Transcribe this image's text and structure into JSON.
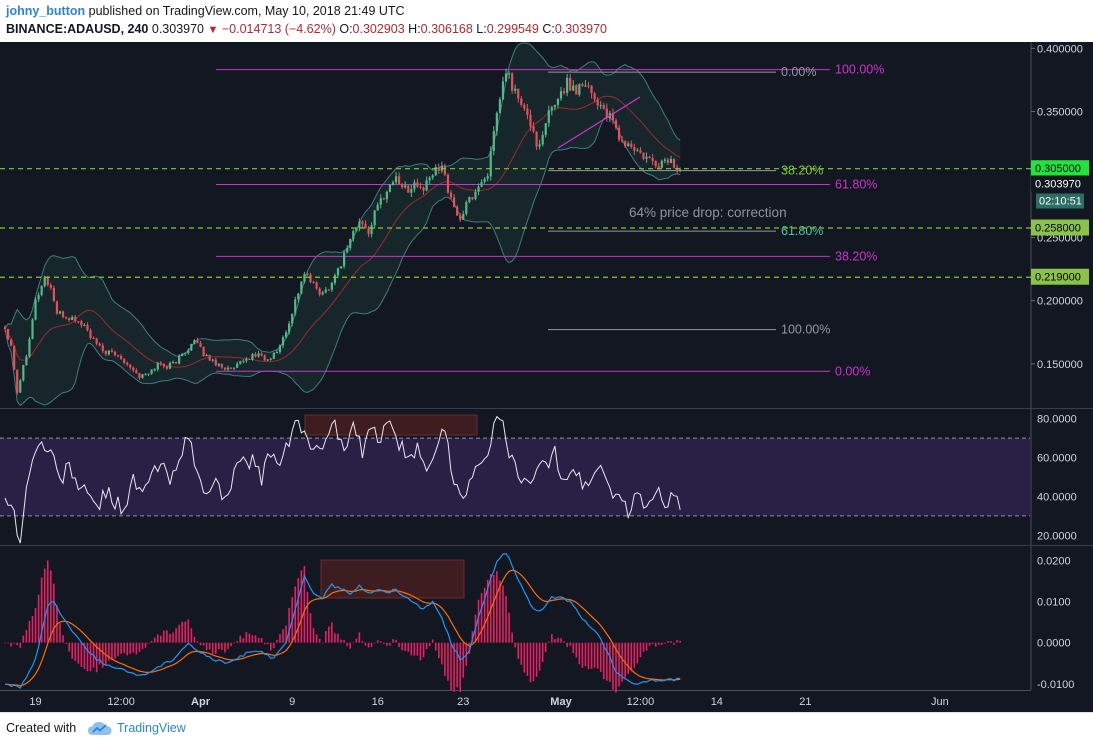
{
  "header": {
    "author": "johny_button",
    "published_text": "published on TradingView.com, May 10, 2018 21:49 UTC",
    "symbol": "BINANCE:ADAUSD, 240",
    "last": "0.303970",
    "change": "−0.014713 (−4.62%)",
    "ohlc": {
      "o_label": "O:",
      "o": "0.302903",
      "h_label": "H:",
      "h": "0.306168",
      "l_label": "L:",
      "l": "0.299549",
      "c_label": "C:",
      "c": "0.303970"
    }
  },
  "footer": {
    "created_with": "Created with",
    "brand": "TradingView",
    "logo_icon": "tradingview-cloud-icon"
  },
  "colors": {
    "background": "#131722",
    "up": "#53b987",
    "down": "#eb4d5c",
    "fib_gray": "#9598a1",
    "fib_magenta": "#cc33cc",
    "level_green": "#7fcc2e",
    "rsi_band": "#2a1f45",
    "macd_line": "#2196f3",
    "signal_line": "#ff6d00",
    "histogram": "#e91e63"
  },
  "chart_data": [
    {
      "type": "candlestick",
      "panel": "price",
      "ylim": [
        0.115,
        0.405
      ],
      "y_ticks": [
        "0.400000",
        "0.350000",
        "0.300000",
        "0.250000",
        "0.200000",
        "0.150000"
      ],
      "x_ticks": [
        "19",
        "12:00",
        "Apr",
        "9",
        "16",
        "23",
        "May",
        "12:00",
        "14",
        "21",
        "Jun"
      ],
      "close_anchors": [
        [
          0,
          0.178
        ],
        [
          2,
          0.165
        ],
        [
          4,
          0.128
        ],
        [
          7,
          0.158
        ],
        [
          10,
          0.2
        ],
        [
          13,
          0.218
        ],
        [
          15,
          0.21
        ],
        [
          17,
          0.19
        ],
        [
          20,
          0.187
        ],
        [
          23,
          0.185
        ],
        [
          26,
          0.18
        ],
        [
          29,
          0.168
        ],
        [
          32,
          0.16
        ],
        [
          35,
          0.158
        ],
        [
          38,
          0.155
        ],
        [
          41,
          0.148
        ],
        [
          44,
          0.14
        ],
        [
          47,
          0.142
        ],
        [
          50,
          0.15
        ],
        [
          53,
          0.148
        ],
        [
          56,
          0.152
        ],
        [
          59,
          0.16
        ],
        [
          62,
          0.168
        ],
        [
          65,
          0.158
        ],
        [
          68,
          0.152
        ],
        [
          71,
          0.148
        ],
        [
          74,
          0.145
        ],
        [
          77,
          0.15
        ],
        [
          80,
          0.155
        ],
        [
          83,
          0.158
        ],
        [
          86,
          0.152
        ],
        [
          89,
          0.16
        ],
        [
          92,
          0.175
        ],
        [
          95,
          0.2
        ],
        [
          98,
          0.222
        ],
        [
          101,
          0.212
        ],
        [
          104,
          0.205
        ],
        [
          107,
          0.215
        ],
        [
          110,
          0.23
        ],
        [
          113,
          0.25
        ],
        [
          116,
          0.262
        ],
        [
          119,
          0.255
        ],
        [
          122,
          0.275
        ],
        [
          125,
          0.288
        ],
        [
          128,
          0.298
        ],
        [
          131,
          0.288
        ],
        [
          134,
          0.292
        ],
        [
          137,
          0.288
        ],
        [
          140,
          0.3
        ],
        [
          143,
          0.31
        ],
        [
          146,
          0.278
        ],
        [
          149,
          0.265
        ],
        [
          152,
          0.28
        ],
        [
          155,
          0.29
        ],
        [
          158,
          0.302
        ],
        [
          160,
          0.33
        ],
        [
          162,
          0.36
        ],
        [
          164,
          0.382
        ],
        [
          166,
          0.37
        ],
        [
          169,
          0.355
        ],
        [
          172,
          0.34
        ],
        [
          175,
          0.32
        ],
        [
          178,
          0.348
        ],
        [
          181,
          0.362
        ],
        [
          184,
          0.372
        ],
        [
          187,
          0.368
        ],
        [
          190,
          0.375
        ],
        [
          193,
          0.36
        ],
        [
          196,
          0.352
        ],
        [
          199,
          0.34
        ],
        [
          202,
          0.325
        ],
        [
          205,
          0.322
        ],
        [
          208,
          0.315
        ],
        [
          211,
          0.31
        ],
        [
          214,
          0.308
        ],
        [
          217,
          0.312
        ],
        [
          220,
          0.305
        ],
        [
          221,
          0.304
        ]
      ],
      "last_price": 0.30397,
      "bollinger_bands": true,
      "fib_retracement_gray": [
        {
          "label": "0.00%",
          "value": 0.3815
        },
        {
          "label": "38.20%",
          "value": 0.3035
        },
        {
          "label": "61.80%",
          "value": 0.2555
        },
        {
          "label": "100.00%",
          "value": 0.1775
        }
      ],
      "fib_retracement_magenta": [
        {
          "label": "100.00%",
          "value": 0.3835
        },
        {
          "label": "61.80%",
          "value": 0.2925
        },
        {
          "label": "38.20%",
          "value": 0.2355
        },
        {
          "label": "0.00%",
          "value": 0.1445
        }
      ],
      "horizontal_levels": [
        {
          "value": 0.305,
          "label": "0.305000"
        },
        {
          "value": 0.258,
          "label": "0.258000"
        },
        {
          "value": 0.219,
          "label": "0.219000"
        }
      ],
      "price_tag": "0.303970",
      "countdown": "02:10:51",
      "annotation": "64% price drop: correction"
    },
    {
      "type": "line",
      "panel": "rsi",
      "ylim": [
        15,
        85
      ],
      "y_ticks": [
        "80.0000",
        "60.0000",
        "40.0000",
        "20.0000"
      ],
      "band": [
        30,
        70
      ],
      "anchors": [
        [
          0,
          42
        ],
        [
          3,
          30
        ],
        [
          5,
          18
        ],
        [
          8,
          55
        ],
        [
          12,
          68
        ],
        [
          15,
          62
        ],
        [
          18,
          48
        ],
        [
          21,
          56
        ],
        [
          24,
          46
        ],
        [
          27,
          40
        ],
        [
          30,
          35
        ],
        [
          33,
          42
        ],
        [
          36,
          38
        ],
        [
          39,
          34
        ],
        [
          42,
          48
        ],
        [
          45,
          40
        ],
        [
          48,
          52
        ],
        [
          51,
          56
        ],
        [
          54,
          48
        ],
        [
          57,
          62
        ],
        [
          60,
          70
        ],
        [
          63,
          50
        ],
        [
          66,
          42
        ],
        [
          69,
          46
        ],
        [
          72,
          40
        ],
        [
          75,
          52
        ],
        [
          78,
          56
        ],
        [
          81,
          60
        ],
        [
          84,
          48
        ],
        [
          87,
          64
        ],
        [
          90,
          55
        ],
        [
          93,
          68
        ],
        [
          96,
          80
        ],
        [
          99,
          70
        ],
        [
          102,
          62
        ],
        [
          105,
          72
        ],
        [
          108,
          78
        ],
        [
          111,
          62
        ],
        [
          114,
          76
        ],
        [
          117,
          62
        ],
        [
          120,
          74
        ],
        [
          123,
          70
        ],
        [
          126,
          78
        ],
        [
          129,
          68
        ],
        [
          132,
          56
        ],
        [
          135,
          64
        ],
        [
          138,
          56
        ],
        [
          141,
          66
        ],
        [
          144,
          74
        ],
        [
          147,
          48
        ],
        [
          150,
          42
        ],
        [
          153,
          50
        ],
        [
          156,
          56
        ],
        [
          159,
          70
        ],
        [
          162,
          82
        ],
        [
          165,
          60
        ],
        [
          168,
          52
        ],
        [
          171,
          44
        ],
        [
          174,
          58
        ],
        [
          177,
          54
        ],
        [
          180,
          62
        ],
        [
          183,
          48
        ],
        [
          186,
          56
        ],
        [
          189,
          45
        ],
        [
          192,
          50
        ],
        [
          195,
          55
        ],
        [
          198,
          44
        ],
        [
          201,
          40
        ],
        [
          204,
          32
        ],
        [
          207,
          40
        ],
        [
          210,
          34
        ],
        [
          213,
          44
        ],
        [
          216,
          38
        ],
        [
          219,
          40
        ],
        [
          221,
          36
        ]
      ]
    },
    {
      "type": "macd",
      "panel": "macd",
      "ylim": [
        -0.0115,
        0.0235
      ],
      "y_ticks": [
        "0.0200",
        "0.0100",
        "0.0000",
        "-0.0100"
      ],
      "macd_anchors": [
        [
          0,
          -0.01
        ],
        [
          5,
          -0.011
        ],
        [
          10,
          -0.004
        ],
        [
          14,
          0.009
        ],
        [
          16,
          0.01
        ],
        [
          20,
          0.005
        ],
        [
          25,
          0.0
        ],
        [
          30,
          -0.004
        ],
        [
          35,
          -0.006
        ],
        [
          40,
          -0.007
        ],
        [
          45,
          -0.008
        ],
        [
          50,
          -0.006
        ],
        [
          55,
          -0.004
        ],
        [
          60,
          0.0
        ],
        [
          63,
          -0.002
        ],
        [
          68,
          -0.004
        ],
        [
          72,
          -0.005
        ],
        [
          76,
          -0.004
        ],
        [
          80,
          -0.002
        ],
        [
          84,
          -0.002
        ],
        [
          88,
          -0.004
        ],
        [
          92,
          0.0
        ],
        [
          95,
          0.008
        ],
        [
          98,
          0.016
        ],
        [
          101,
          0.012
        ],
        [
          104,
          0.011
        ],
        [
          107,
          0.014
        ],
        [
          110,
          0.013
        ],
        [
          113,
          0.012
        ],
        [
          116,
          0.014
        ],
        [
          119,
          0.012
        ],
        [
          122,
          0.013
        ],
        [
          125,
          0.012
        ],
        [
          128,
          0.013
        ],
        [
          131,
          0.011
        ],
        [
          134,
          0.01
        ],
        [
          137,
          0.008
        ],
        [
          140,
          0.01
        ],
        [
          143,
          0.006
        ],
        [
          146,
          0.0
        ],
        [
          149,
          -0.004
        ],
        [
          152,
          -0.002
        ],
        [
          155,
          0.006
        ],
        [
          158,
          0.013
        ],
        [
          161,
          0.02
        ],
        [
          164,
          0.022
        ],
        [
          167,
          0.017
        ],
        [
          170,
          0.012
        ],
        [
          173,
          0.008
        ],
        [
          176,
          0.008
        ],
        [
          179,
          0.011
        ],
        [
          182,
          0.011
        ],
        [
          185,
          0.01
        ],
        [
          188,
          0.007
        ],
        [
          191,
          0.004
        ],
        [
          194,
          0.002
        ],
        [
          197,
          -0.002
        ],
        [
          200,
          -0.007
        ],
        [
          203,
          -0.009
        ],
        [
          206,
          -0.01
        ],
        [
          209,
          -0.0095
        ],
        [
          212,
          -0.009
        ],
        [
          215,
          -0.0095
        ],
        [
          218,
          -0.009
        ],
        [
          221,
          -0.009
        ]
      ],
      "signal_period": 9
    }
  ]
}
